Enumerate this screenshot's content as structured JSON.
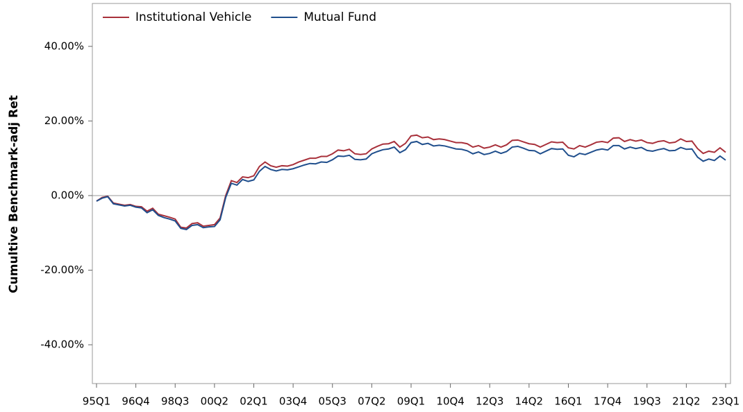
{
  "chart_data": {
    "type": "line",
    "y_label": "Cumultive Benchmark-adj Ret",
    "categories": [
      "95Q1",
      null,
      null,
      null,
      null,
      null,
      null,
      "96Q4",
      null,
      null,
      null,
      null,
      null,
      null,
      "98Q3",
      null,
      null,
      null,
      null,
      null,
      null,
      "00Q2",
      null,
      null,
      null,
      null,
      null,
      null,
      "02Q1",
      null,
      null,
      null,
      null,
      null,
      null,
      "03Q4",
      null,
      null,
      null,
      null,
      null,
      null,
      "05Q3",
      null,
      null,
      null,
      null,
      null,
      null,
      "07Q2",
      null,
      null,
      null,
      null,
      null,
      null,
      "09Q1",
      null,
      null,
      null,
      null,
      null,
      null,
      "10Q4",
      null,
      null,
      null,
      null,
      null,
      null,
      "12Q3",
      null,
      null,
      null,
      null,
      null,
      null,
      "14Q2",
      null,
      null,
      null,
      null,
      null,
      null,
      "16Q1",
      null,
      null,
      null,
      null,
      null,
      null,
      "17Q4",
      null,
      null,
      null,
      null,
      null,
      null,
      "19Q3",
      null,
      null,
      null,
      null,
      null,
      null,
      "21Q2",
      null,
      null,
      null,
      null,
      null,
      null,
      "23Q1"
    ],
    "series": [
      {
        "name": "Institutional Vehicle",
        "color": "#a8303a",
        "values": [
          -1.5,
          -0.5,
          -0.2,
          -2.0,
          -2.3,
          -2.6,
          -2.4,
          -2.9,
          -3.0,
          -4.2,
          -3.4,
          -5.0,
          -5.4,
          -5.8,
          -6.3,
          -8.5,
          -8.7,
          -7.5,
          -7.3,
          -8.2,
          -8.0,
          -7.8,
          -6.0,
          0.0,
          4.0,
          3.5,
          5.0,
          4.8,
          5.3,
          7.8,
          9.0,
          8.0,
          7.6,
          8.0,
          7.9,
          8.3,
          9.0,
          9.5,
          10.0,
          10.0,
          10.5,
          10.5,
          11.2,
          12.2,
          12.0,
          12.4,
          11.2,
          11.0,
          11.2,
          12.5,
          13.2,
          13.8,
          13.9,
          14.5,
          13.0,
          14.0,
          16.0,
          16.2,
          15.5,
          15.7,
          15.0,
          15.2,
          15.0,
          14.6,
          14.2,
          14.2,
          13.9,
          13.0,
          13.4,
          12.7,
          13.0,
          13.6,
          13.0,
          13.6,
          14.8,
          14.9,
          14.4,
          13.9,
          13.7,
          13.0,
          13.7,
          14.4,
          14.2,
          14.3,
          12.8,
          12.5,
          13.4,
          13.0,
          13.6,
          14.3,
          14.5,
          14.2,
          15.4,
          15.5,
          14.5,
          15.0,
          14.6,
          14.9,
          14.2,
          14.0,
          14.5,
          14.7,
          14.1,
          14.3,
          15.2,
          14.5,
          14.6,
          12.6,
          11.3,
          11.9,
          11.6,
          12.8,
          11.6
        ]
      },
      {
        "name": "Mutual Fund",
        "color": "#1f4e8c",
        "values": [
          -1.5,
          -0.7,
          -0.3,
          -2.2,
          -2.5,
          -2.8,
          -2.6,
          -3.1,
          -3.3,
          -4.6,
          -3.8,
          -5.3,
          -5.9,
          -6.3,
          -6.8,
          -8.8,
          -9.1,
          -8.0,
          -7.8,
          -8.6,
          -8.4,
          -8.3,
          -6.5,
          -0.5,
          3.3,
          2.8,
          4.3,
          3.8,
          4.2,
          6.5,
          7.8,
          7.0,
          6.6,
          7.0,
          6.9,
          7.2,
          7.7,
          8.2,
          8.6,
          8.5,
          9.0,
          8.9,
          9.6,
          10.6,
          10.5,
          10.8,
          9.7,
          9.6,
          9.8,
          11.2,
          11.8,
          12.3,
          12.5,
          13.0,
          11.5,
          12.3,
          14.2,
          14.5,
          13.7,
          14.0,
          13.3,
          13.5,
          13.3,
          12.9,
          12.5,
          12.4,
          12.0,
          11.2,
          11.7,
          11.0,
          11.3,
          11.9,
          11.3,
          11.8,
          13.0,
          13.2,
          12.7,
          12.1,
          12.0,
          11.2,
          11.9,
          12.6,
          12.4,
          12.5,
          10.8,
          10.4,
          11.3,
          11.0,
          11.6,
          12.2,
          12.5,
          12.2,
          13.4,
          13.4,
          12.5,
          13.0,
          12.6,
          12.9,
          12.1,
          11.9,
          12.3,
          12.6,
          12.0,
          12.1,
          12.9,
          12.4,
          12.5,
          10.3,
          9.2,
          9.8,
          9.4,
          10.6,
          9.5
        ]
      }
    ],
    "ylim": [
      -50.4,
      51.5
    ],
    "yticks": [
      {
        "value": -40,
        "label": "-40.00%"
      },
      {
        "value": -20,
        "label": "-20.00%"
      },
      {
        "value": 0,
        "label": "0.00%"
      },
      {
        "value": 20,
        "label": "20.00%"
      },
      {
        "value": 40,
        "label": "40.00%"
      }
    ],
    "reference_line": 0,
    "legend": "top-left"
  }
}
